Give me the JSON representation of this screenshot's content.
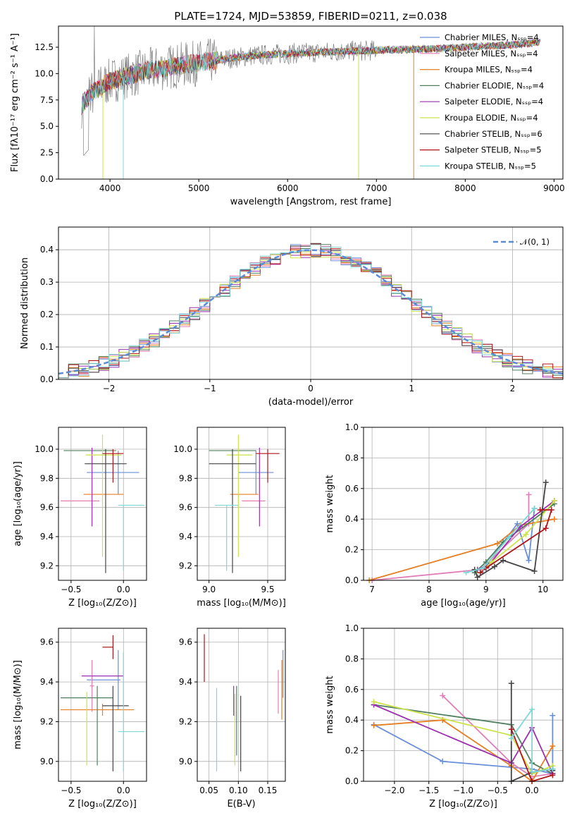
{
  "colors": {
    "chabrier_miles": "#6a8fd8",
    "salpeter_miles": "#e07fb7",
    "kroupa_miles": "#e67e22",
    "chabrier_elodie": "#4f7f5f",
    "salpeter_elodie": "#9b30b0",
    "kroupa_elodie": "#cde24a",
    "chabrier_stelib": "#444444",
    "salpeter_stelib": "#b0141a",
    "kroupa_stelib": "#7fd8d8",
    "data": "#808080",
    "normal": "#5b8bd6"
  },
  "chart_data": [
    {
      "id": "spectrum",
      "type": "line",
      "title": "PLATE=1724, MJD=53859, FIBERID=0211, z=0.038",
      "xlabel": "wavelength [Angstrom, rest frame]",
      "ylabel": "Flux [fλ10⁻¹⁷ erg cm⁻² s⁻¹ A⁻¹]",
      "xlim": [
        3420,
        9100
      ],
      "ylim": [
        0,
        14.5
      ],
      "xticks": [
        "4000",
        "5000",
        "6000",
        "7000",
        "8000",
        "9000"
      ],
      "yticks": [
        "0.0",
        "2.5",
        "5.0",
        "7.5",
        "10.0",
        "12.5"
      ],
      "legend_position": "top-right",
      "legend": [
        "Chabrier MILES, Nₛₛₚ=4",
        "Salpeter MILES, Nₛₛₚ=4",
        "Kroupa MILES, Nₛₛₚ=4",
        "Chabrier ELODIE, Nₛₛₚ=4",
        "Salpeter ELODIE, Nₛₛₚ=4",
        "Kroupa ELODIE, Nₛₛₚ=4",
        "Chabrier STELIB, Nₛₛₚ=6",
        "Salpeter STELIB, Nₛₛₚ=5",
        "Kroupa STELIB, Nₛₛₚ=5"
      ],
      "continuum": {
        "x": [
          3680,
          3800,
          4000,
          4200,
          4500,
          4800,
          5000,
          5300,
          5600,
          6000,
          6300,
          6600,
          7000,
          7400,
          7800,
          8200,
          8500,
          8850
        ],
        "y": [
          7.0,
          8.2,
          9.3,
          9.8,
          10.4,
          10.8,
          11.0,
          11.4,
          11.7,
          11.9,
          12.0,
          12.1,
          12.2,
          12.3,
          12.4,
          12.6,
          12.7,
          13.0
        ]
      }
    },
    {
      "id": "residuals",
      "type": "histogram",
      "xlabel": "(data-model)/error",
      "ylabel": "Normed distribution",
      "xlim": [
        -2.5,
        2.5
      ],
      "ylim": [
        0,
        0.47
      ],
      "xticks": [
        "−2",
        "−1",
        "0",
        "1",
        "2"
      ],
      "yticks": [
        "0.0",
        "0.1",
        "0.2",
        "0.3",
        "0.4"
      ],
      "grid": true,
      "legend": "𝒩(0, 1)",
      "legend_position": "top-right",
      "bin_width": 0.1
    },
    {
      "id": "age-vs-Z",
      "type": "errorbar",
      "xlabel": "Z [log₁₀(Z/Z⊙)]",
      "ylabel": "age  [log₁₀(age/yr)]",
      "xlim": [
        -0.62,
        0.22
      ],
      "ylim": [
        9.1,
        10.15
      ],
      "xticks": [
        "−0.5",
        "0.0"
      ],
      "yticks": [
        "9.2",
        "9.4",
        "9.6",
        "9.8",
        "10.0"
      ],
      "grid": true,
      "points": [
        {
          "series": "chabrier_miles",
          "x": -0.05,
          "xerr": [
            0.3,
            0.2
          ],
          "y": 9.84,
          "yerr": [
            0.15,
            0.15
          ]
        },
        {
          "series": "salpeter_miles",
          "x": -0.4,
          "xerr": [
            0.2,
            0.17
          ],
          "y": 9.645,
          "yerr": [
            0.0,
            0.0
          ]
        },
        {
          "series": "kroupa_miles",
          "x": -0.1,
          "xerr": [
            0.28,
            0.1
          ],
          "y": 9.69,
          "yerr": [
            0.0,
            0.0
          ]
        },
        {
          "series": "chabrier_elodie",
          "x": -0.27,
          "xerr": [
            0.3,
            0.2
          ],
          "y": 9.99,
          "yerr": [
            0.0,
            0.0
          ]
        },
        {
          "series": "salpeter_elodie",
          "x": -0.3,
          "xerr": [
            0.0,
            0.0
          ],
          "y": 9.73,
          "yerr": [
            0.26,
            0.28
          ]
        },
        {
          "series": "kroupa_elodie",
          "x": -0.2,
          "xerr": [
            0.16,
            0.18
          ],
          "y": 9.96,
          "yerr": [
            0.7,
            0.14
          ]
        },
        {
          "series": "chabrier_stelib",
          "x": -0.17,
          "xerr": [
            0.2,
            0.2
          ],
          "y": 9.9,
          "yerr": [
            0.75,
            0.1
          ]
        },
        {
          "series": "salpeter_stelib",
          "x": -0.1,
          "xerr": [
            0.1,
            0.1
          ],
          "y": 9.97,
          "yerr": [
            0.2,
            0.03
          ]
        },
        {
          "series": "kroupa_stelib",
          "x": 0.0,
          "xerr": [
            0.05,
            0.2
          ],
          "y": 9.615,
          "yerr": [
            0.45,
            0.0
          ]
        }
      ]
    },
    {
      "id": "age-vs-mass",
      "type": "errorbar",
      "xlabel": "mass [log₁₀(M/M⊙)]",
      "ylabel": "",
      "xlim": [
        8.9,
        9.65
      ],
      "ylim": [
        9.1,
        10.15
      ],
      "xticks": [
        "9.0",
        "9.5"
      ],
      "yticks": [
        "9.2",
        "9.4",
        "9.6",
        "9.8",
        "10.0"
      ],
      "grid": true,
      "points": [
        {
          "series": "chabrier_miles",
          "x": 9.4,
          "xerr": [
            0.15,
            0.15
          ],
          "y": 9.84,
          "yerr": [
            0.15,
            0.15
          ]
        },
        {
          "series": "salpeter_miles",
          "x": 9.38,
          "xerr": [
            0.1,
            0.1
          ],
          "y": 9.645,
          "yerr": [
            0.0,
            0.0
          ]
        },
        {
          "series": "kroupa_miles",
          "x": 9.3,
          "xerr": [
            0.12,
            0.12
          ],
          "y": 9.69,
          "yerr": [
            0.0,
            0.0
          ]
        },
        {
          "series": "chabrier_elodie",
          "x": 9.2,
          "xerr": [
            0.2,
            0.2
          ],
          "y": 9.99,
          "yerr": [
            0.0,
            0.0
          ]
        },
        {
          "series": "salpeter_elodie",
          "x": 9.43,
          "xerr": [
            0.0,
            0.0
          ],
          "y": 9.73,
          "yerr": [
            0.26,
            0.28
          ]
        },
        {
          "series": "kroupa_elodie",
          "x": 9.25,
          "xerr": [
            0.1,
            0.12
          ],
          "y": 9.96,
          "yerr": [
            0.7,
            0.14
          ]
        },
        {
          "series": "chabrier_stelib",
          "x": 9.2,
          "xerr": [
            0.2,
            0.2
          ],
          "y": 9.9,
          "yerr": [
            0.75,
            0.1
          ]
        },
        {
          "series": "salpeter_stelib",
          "x": 9.5,
          "xerr": [
            0.1,
            0.1
          ],
          "y": 9.97,
          "yerr": [
            0.2,
            0.03
          ]
        },
        {
          "series": "kroupa_stelib",
          "x": 9.15,
          "xerr": [
            0.1,
            0.1
          ],
          "y": 9.615,
          "yerr": [
            0.45,
            0.0
          ]
        }
      ]
    },
    {
      "id": "mass-weight-vs-age",
      "type": "line",
      "xlabel": "age  [log₁₀(age/yr)]",
      "ylabel": "mass weight",
      "xlim": [
        6.85,
        10.35
      ],
      "ylim": [
        0,
        1.0
      ],
      "xticks": [
        "7",
        "8",
        "9",
        "10"
      ],
      "yticks": [
        "0.0",
        "0.2",
        "0.4",
        "0.6",
        "0.8",
        "1.0"
      ],
      "grid": true,
      "series": [
        {
          "key": "chabrier_miles",
          "x": [
            8.95,
            9.55,
            9.75,
            9.85
          ],
          "y": [
            0.07,
            0.37,
            0.13,
            0.47
          ]
        },
        {
          "key": "salpeter_miles",
          "x": [
            7.0,
            8.9,
            9.75,
            9.75
          ],
          "y": [
            0.0,
            0.07,
            0.37,
            0.56
          ]
        },
        {
          "key": "kroupa_miles",
          "x": [
            6.95,
            9.2,
            9.6,
            10.2
          ],
          "y": [
            0.0,
            0.24,
            0.36,
            0.4
          ]
        },
        {
          "key": "chabrier_elodie",
          "x": [
            8.8,
            9.0,
            9.3,
            10.2
          ],
          "y": [
            0.05,
            0.12,
            0.25,
            0.5
          ]
        },
        {
          "key": "salpeter_elodie",
          "x": [
            8.85,
            9.05,
            9.6,
            10.2
          ],
          "y": [
            0.07,
            0.1,
            0.35,
            0.52
          ]
        },
        {
          "key": "kroupa_elodie",
          "x": [
            8.9,
            9.1,
            9.7,
            10.2
          ],
          "y": [
            0.05,
            0.12,
            0.3,
            0.52
          ]
        },
        {
          "key": "chabrier_stelib",
          "x": [
            8.8,
            8.85,
            9.15,
            9.3,
            9.85,
            10.05
          ],
          "y": [
            0.07,
            0.02,
            0.09,
            0.13,
            0.06,
            0.64
          ]
        },
        {
          "key": "salpeter_stelib",
          "x": [
            8.9,
            9.0,
            10.05,
            10.15,
            9.95
          ],
          "y": [
            0.05,
            0.08,
            0.34,
            0.46,
            0.46
          ]
        },
        {
          "key": "kroupa_stelib",
          "x": [
            8.65,
            8.95,
            9.4,
            9.85
          ],
          "y": [
            0.05,
            0.08,
            0.28,
            0.47
          ]
        }
      ]
    },
    {
      "id": "mass-vs-Z",
      "type": "errorbar",
      "xlabel": "Z [log₁₀(Z/Z⊙)]",
      "ylabel": "mass [log₁₀(M/M⊙)]",
      "xlim": [
        -0.62,
        0.22
      ],
      "ylim": [
        8.9,
        9.67
      ],
      "xticks": [
        "−0.5",
        "0.0"
      ],
      "yticks": [
        "9.0",
        "9.2",
        "9.4",
        "9.6"
      ],
      "grid": true,
      "points": [
        {
          "series": "chabrier_miles",
          "x": -0.05,
          "xerr": [
            0.3,
            0.02
          ],
          "y": 9.41,
          "yerr": [
            0.15,
            0.15
          ]
        },
        {
          "series": "salpeter_miles",
          "x": -0.3,
          "xerr": [
            0.02,
            0.02
          ],
          "y": 9.38,
          "yerr": [
            0.13,
            0.13
          ]
        },
        {
          "series": "kroupa_miles",
          "x": -0.2,
          "xerr": [
            0.4,
            0.3
          ],
          "y": 9.26,
          "yerr": [
            0.03,
            0.03
          ]
        },
        {
          "series": "chabrier_elodie",
          "x": -0.25,
          "xerr": [
            0.35,
            0.15
          ],
          "y": 9.32,
          "yerr": [
            0.34,
            0.06
          ]
        },
        {
          "series": "salpeter_elodie",
          "x": -0.2,
          "xerr": [
            0.2,
            0.2
          ],
          "y": 9.43,
          "yerr": [
            0.0,
            0.0
          ]
        },
        {
          "series": "kroupa_elodie",
          "x": -0.35,
          "xerr": [
            0.0,
            0.0
          ],
          "y": 9.23,
          "yerr": [
            0.25,
            0.12
          ]
        },
        {
          "series": "chabrier_stelib",
          "x": -0.1,
          "xerr": [
            0.1,
            0.15
          ],
          "y": 9.28,
          "yerr": [
            0.33,
            0.1
          ]
        },
        {
          "series": "salpeter_stelib",
          "x": -0.1,
          "xerr": [
            0.1,
            0.0
          ],
          "y": 9.575,
          "yerr": [
            0.06,
            0.06
          ]
        },
        {
          "series": "kroupa_stelib",
          "x": 0.0,
          "xerr": [
            0.05,
            0.2
          ],
          "y": 9.15,
          "yerr": [
            0.2,
            0.4
          ]
        }
      ]
    },
    {
      "id": "mass-vs-ebv",
      "type": "errorbar",
      "xlabel": "E(B-V)",
      "ylabel": "",
      "xlim": [
        0.03,
        0.18
      ],
      "ylim": [
        8.9,
        9.67
      ],
      "xticks": [
        "0.05",
        "0.10",
        "0.15"
      ],
      "yticks": [
        "9.0",
        "9.2",
        "9.4",
        "9.6"
      ],
      "grid": true,
      "points": [
        {
          "series": "salpeter_stelib",
          "x": 0.042,
          "xerr": [
            0.0,
            0.0
          ],
          "y": 9.52,
          "yerr": [
            0.12,
            0.12
          ]
        },
        {
          "series": "kroupa_stelib",
          "x": 0.063,
          "xerr": [
            0.0,
            0.0
          ],
          "y": 9.13,
          "yerr": [
            0.18,
            0.24
          ]
        },
        {
          "series": "salpeter_elodie",
          "x": 0.092,
          "xerr": [
            0.0,
            0.0
          ],
          "y": 9.31,
          "yerr": [
            0.08,
            0.07
          ]
        },
        {
          "series": "kroupa_elodie",
          "x": 0.094,
          "xerr": [
            0.0,
            0.0
          ],
          "y": 9.16,
          "yerr": [
            0.18,
            0.18
          ]
        },
        {
          "series": "chabrier_elodie",
          "x": 0.097,
          "xerr": [
            0.0,
            0.0
          ],
          "y": 9.23,
          "yerr": [
            0.2,
            0.15
          ]
        },
        {
          "series": "chabrier_stelib",
          "x": 0.104,
          "xerr": [
            0.0,
            0.0
          ],
          "y": 9.17,
          "yerr": [
            0.22,
            0.16
          ]
        },
        {
          "series": "salpeter_miles",
          "x": 0.168,
          "xerr": [
            0.0,
            0.0
          ],
          "y": 9.34,
          "yerr": [
            0.1,
            0.12
          ]
        },
        {
          "series": "kroupa_miles",
          "x": 0.174,
          "xerr": [
            0.0,
            0.0
          ],
          "y": 9.36,
          "yerr": [
            0.15,
            0.15
          ]
        },
        {
          "series": "chabrier_miles",
          "x": 0.176,
          "xerr": [
            0.0,
            0.0
          ],
          "y": 9.44,
          "yerr": [
            0.12,
            0.12
          ]
        }
      ]
    },
    {
      "id": "mass-weight-vs-Z",
      "type": "line",
      "xlabel": "Z [log₁₀(Z/Z⊙)]",
      "ylabel": "mass weight",
      "xlim": [
        -2.45,
        0.45
      ],
      "ylim": [
        0,
        1.0
      ],
      "xticks": [
        "−2.0",
        "−1.5",
        "−1.0",
        "−0.5",
        "0.0"
      ],
      "yticks": [
        "0.0",
        "0.2",
        "0.4",
        "0.6",
        "0.8",
        "1.0"
      ],
      "grid": true,
      "series": [
        {
          "key": "chabrier_miles",
          "x": [
            -2.3,
            -1.3,
            0.0,
            0.3,
            0.3
          ],
          "y": [
            0.37,
            0.13,
            0.08,
            0.05,
            0.43
          ]
        },
        {
          "key": "salpeter_miles",
          "x": [
            -1.3,
            -0.3,
            0.0,
            0.3
          ],
          "y": [
            0.56,
            0.12,
            0.03,
            0.05
          ]
        },
        {
          "key": "kroupa_miles",
          "x": [
            -2.3,
            -1.3,
            -0.3,
            0.0,
            0.3
          ],
          "y": [
            0.365,
            0.4,
            0.1,
            0.0,
            0.23
          ]
        },
        {
          "key": "chabrier_elodie",
          "x": [
            -2.3,
            -0.3,
            0.0,
            0.3
          ],
          "y": [
            0.5,
            0.37,
            0.12,
            0.05
          ]
        },
        {
          "key": "salpeter_elodie",
          "x": [
            -2.3,
            -0.3,
            0.0,
            0.3
          ],
          "y": [
            0.5,
            0.12,
            0.35,
            0.05
          ]
        },
        {
          "key": "kroupa_elodie",
          "x": [
            -2.3,
            -0.3,
            0.0,
            0.3
          ],
          "y": [
            0.52,
            0.3,
            0.05,
            0.1
          ]
        },
        {
          "key": "chabrier_stelib",
          "x": [
            -0.3,
            -0.3,
            0.0,
            0.3,
            0.3
          ],
          "y": [
            0.64,
            0.0,
            0.06,
            0.08,
            0.07
          ]
        },
        {
          "key": "salpeter_stelib",
          "x": [
            -0.3,
            0.0,
            0.3
          ],
          "y": [
            0.34,
            0.0,
            0.04
          ]
        },
        {
          "key": "kroupa_stelib",
          "x": [
            -0.3,
            0.0,
            0.0,
            0.3
          ],
          "y": [
            0.28,
            0.47,
            0.06,
            0.08
          ]
        }
      ]
    }
  ]
}
